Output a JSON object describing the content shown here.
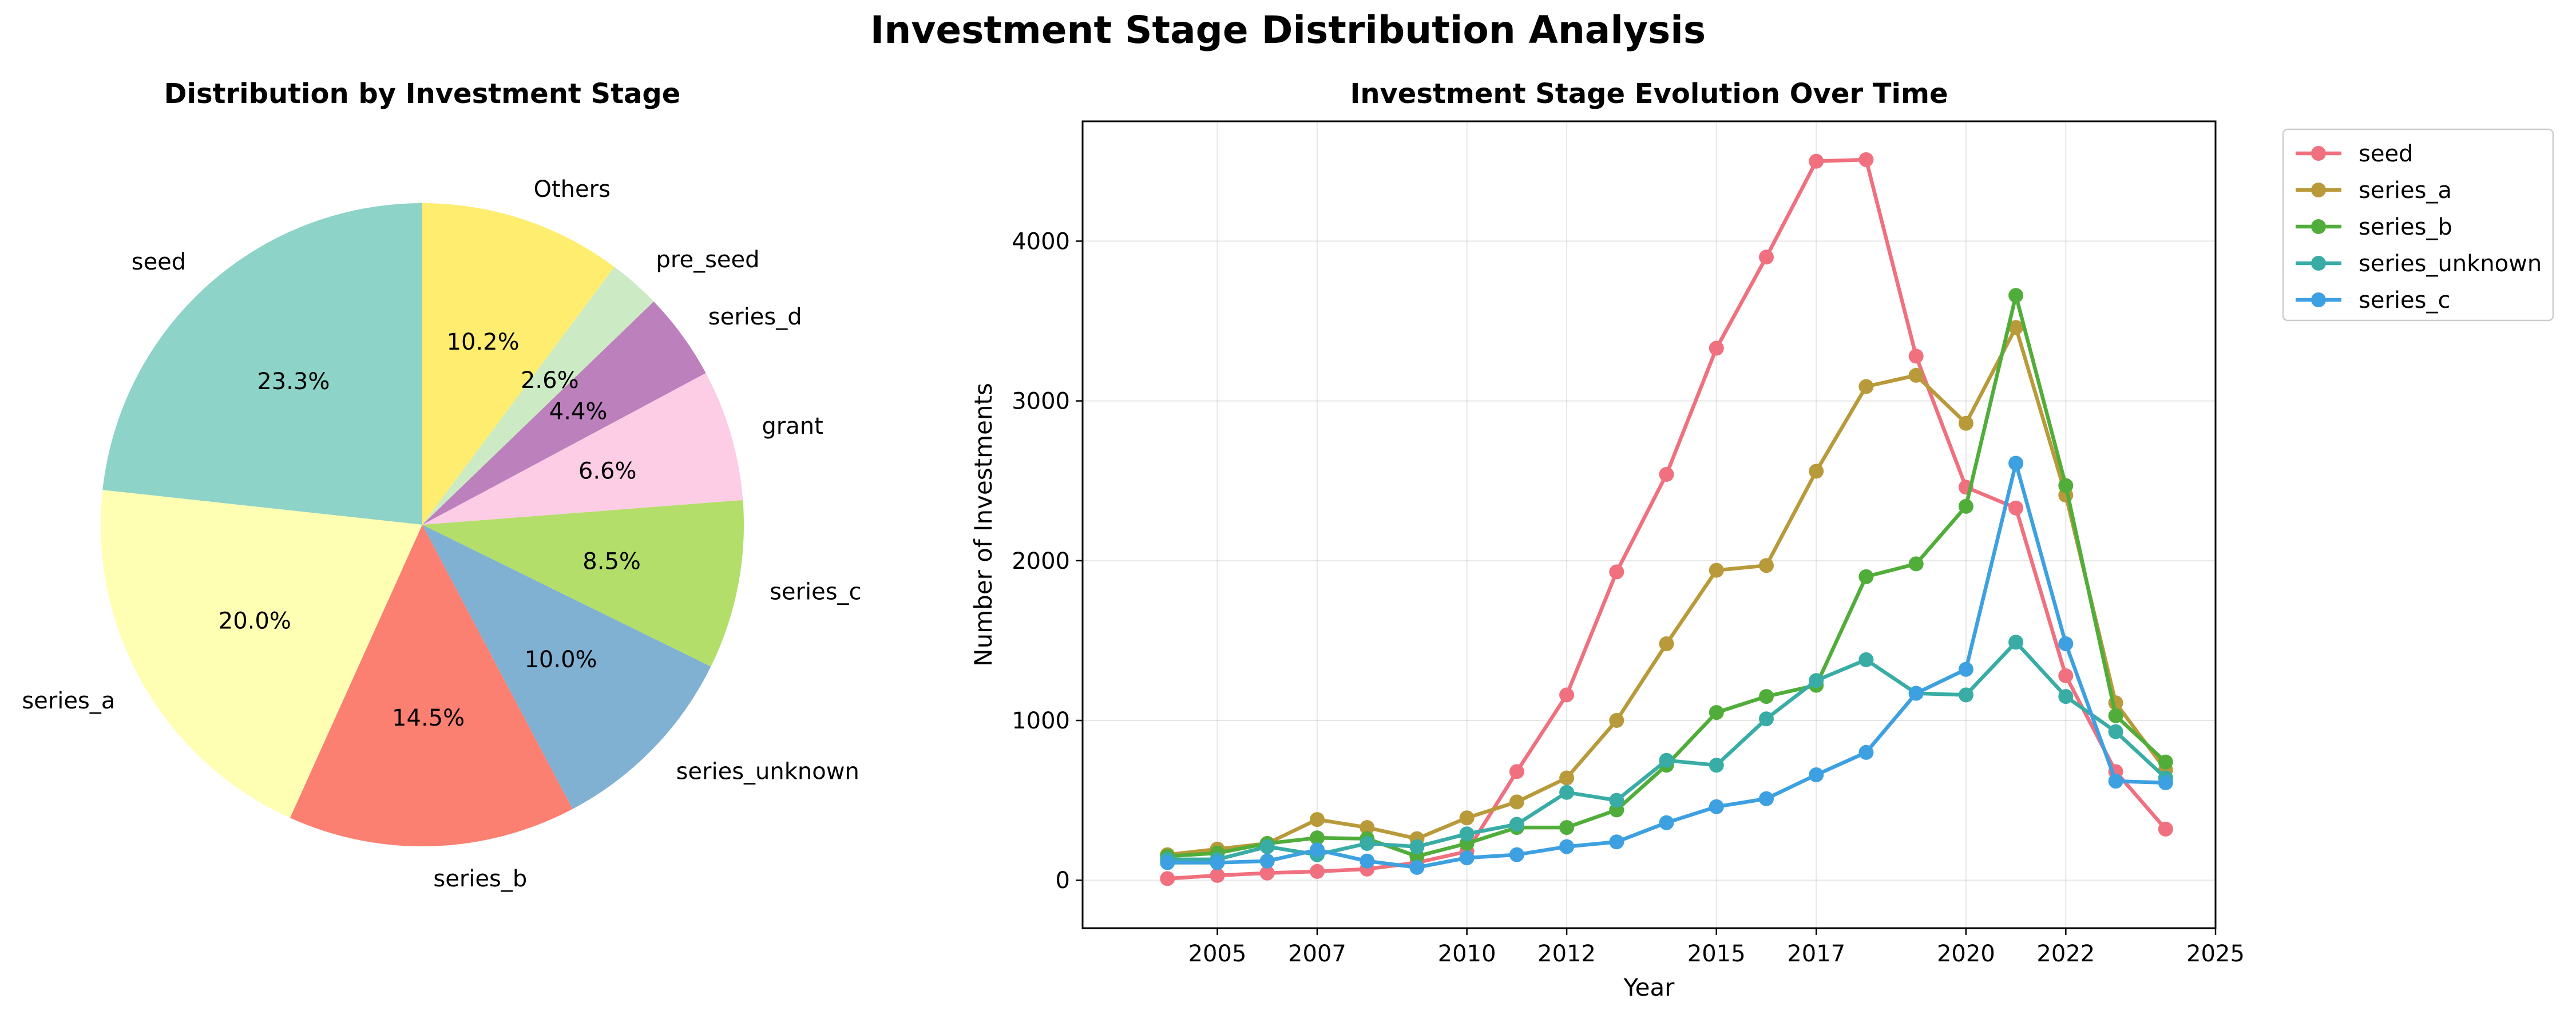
{
  "figure_title": "Investment Stage Distribution Analysis",
  "chart_data": [
    {
      "type": "pie",
      "title": "Distribution by Investment Stage",
      "start_angle_deg": 90,
      "direction": "counterclockwise",
      "slices": [
        {
          "label": "seed",
          "value": 23.3,
          "pct_label": "23.3%",
          "color": "#8dd3c7"
        },
        {
          "label": "series_a",
          "value": 20.0,
          "pct_label": "20.0%",
          "color": "#ffffb3"
        },
        {
          "label": "series_b",
          "value": 14.5,
          "pct_label": "14.5%",
          "color": "#fb8072"
        },
        {
          "label": "series_unknown",
          "value": 10.0,
          "pct_label": "10.0%",
          "color": "#80b1d3"
        },
        {
          "label": "series_c",
          "value": 8.5,
          "pct_label": "8.5%",
          "color": "#b3de69"
        },
        {
          "label": "grant",
          "value": 6.6,
          "pct_label": "6.6%",
          "color": "#fccde5"
        },
        {
          "label": "series_d",
          "value": 4.4,
          "pct_label": "4.4%",
          "color": "#bc80bd"
        },
        {
          "label": "pre_seed",
          "value": 2.6,
          "pct_label": "2.6%",
          "color": "#ccebc5"
        },
        {
          "label": "Others",
          "value": 10.2,
          "pct_label": "10.2%",
          "color": "#ffed6f"
        }
      ]
    },
    {
      "type": "line",
      "title": "Investment Stage Evolution Over Time",
      "xlabel": "Year",
      "ylabel": "Number of Investments",
      "xlim": [
        2002.3,
        2025
      ],
      "ylim": [
        -300,
        4750
      ],
      "xticks": [
        2005,
        2007,
        2010,
        2012,
        2015,
        2017,
        2020,
        2022,
        2025
      ],
      "yticks": [
        0,
        1000,
        2000,
        3000,
        4000
      ],
      "grid": true,
      "legend_position": "outside-top-right",
      "x": [
        2004.0,
        2005.0,
        2006.0,
        2007.0,
        2008.0,
        2009.0,
        2010.0,
        2011.0,
        2012.0,
        2013.0,
        2014.0,
        2015.0,
        2016.0,
        2017.0,
        2018.0,
        2019.0,
        2020.0,
        2021.0,
        2022.0,
        2023.0,
        2024.0
      ],
      "series": [
        {
          "name": "seed",
          "color": "#f0707f",
          "values": [
            10,
            30,
            45,
            55,
            70,
            110,
            180,
            680,
            1160,
            1930,
            2540,
            3330,
            3900,
            4500,
            4510,
            3280,
            2460,
            2330,
            1280,
            680,
            320
          ]
        },
        {
          "name": "series_a",
          "color": "#b99a3a",
          "values": [
            160,
            195,
            230,
            380,
            330,
            260,
            390,
            490,
            640,
            1000,
            1480,
            1940,
            1970,
            2560,
            3090,
            3160,
            2860,
            3460,
            2410,
            1110,
            690
          ]
        },
        {
          "name": "series_b",
          "color": "#51ad3a",
          "values": [
            150,
            170,
            230,
            265,
            260,
            150,
            230,
            330,
            330,
            440,
            720,
            1050,
            1150,
            1220,
            1900,
            1980,
            2340,
            3660,
            2470,
            1030,
            740
          ]
        },
        {
          "name": "series_unknown",
          "color": "#38aca5",
          "values": [
            130,
            130,
            210,
            160,
            230,
            210,
            290,
            350,
            550,
            500,
            750,
            720,
            1010,
            1250,
            1380,
            1170,
            1160,
            1490,
            1150,
            930,
            640
          ]
        },
        {
          "name": "series_c",
          "color": "#3da0e0",
          "values": [
            110,
            110,
            120,
            190,
            120,
            80,
            140,
            160,
            210,
            240,
            360,
            460,
            510,
            660,
            800,
            1170,
            1320,
            2610,
            1480,
            620,
            610
          ]
        }
      ]
    }
  ]
}
